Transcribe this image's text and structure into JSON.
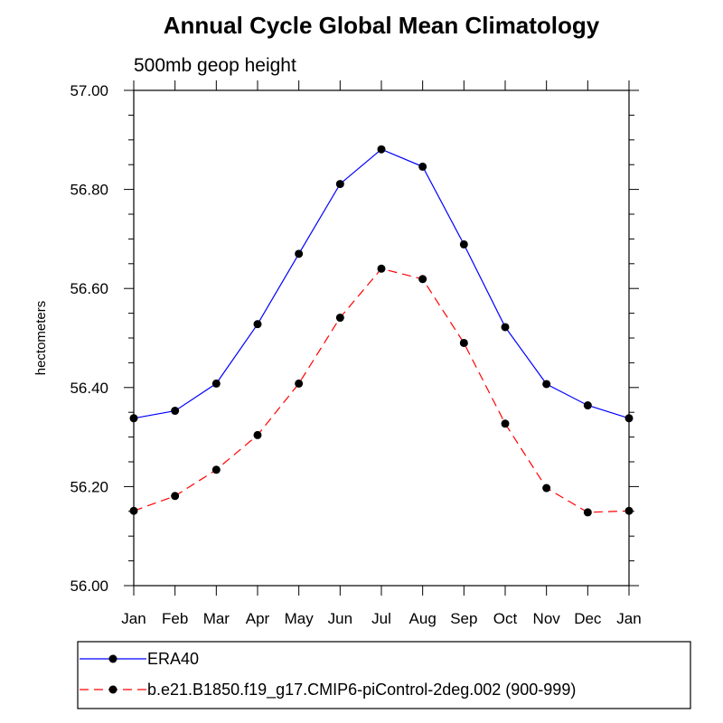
{
  "chart_data": {
    "type": "line",
    "title": "Annual Cycle Global Mean Climatology",
    "subtitle": "500mb geop height",
    "xlabel": "",
    "ylabel": "hectometers",
    "categories": [
      "Jan",
      "Feb",
      "Mar",
      "Apr",
      "May",
      "Jun",
      "Jul",
      "Aug",
      "Sep",
      "Oct",
      "Nov",
      "Dec",
      "Jan"
    ],
    "ylim": [
      56.0,
      57.0
    ],
    "yticks": [
      "56.00",
      "56.20",
      "56.40",
      "56.60",
      "56.80",
      "57.00"
    ],
    "grid": false,
    "legend_position": "bottom",
    "series": [
      {
        "name": "ERA40",
        "color": "#0000ff",
        "style": "solid",
        "marker": "circle",
        "values": [
          56.338,
          56.353,
          56.408,
          56.528,
          56.67,
          56.811,
          56.881,
          56.846,
          56.689,
          56.522,
          56.407,
          56.364,
          56.338
        ]
      },
      {
        "name": "b.e21.B1850.f19_g17.CMIP6-piControl-2deg.002 (900-999)",
        "color": "#ff0000",
        "style": "dashed",
        "marker": "circle",
        "values": [
          56.151,
          56.181,
          56.234,
          56.304,
          56.408,
          56.541,
          56.64,
          56.619,
          56.49,
          56.327,
          56.197,
          56.148,
          56.151
        ]
      }
    ]
  }
}
